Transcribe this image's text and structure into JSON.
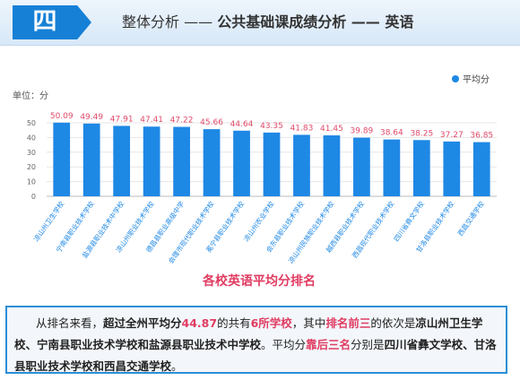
{
  "header": {
    "badge": "四",
    "title_prefix": "整体分析 —— ",
    "title_main": "公共基础课成绩分析 —— 英语"
  },
  "chart_data": {
    "type": "bar",
    "title": "各校英语平均分排名",
    "unit_label": "单位：分",
    "legend": "平均分",
    "legend_position": "top-right",
    "ylim": [
      0,
      50
    ],
    "yticks": [
      0,
      10,
      20,
      30,
      40,
      50
    ],
    "grid": true,
    "bar_color": "#1e88e5",
    "value_label_color": "#e04a6a",
    "title_color": "#e03c62",
    "series": [
      {
        "name": "平均分",
        "values": [
          50.09,
          49.49,
          47.91,
          47.41,
          47.22,
          45.66,
          44.64,
          43.35,
          41.83,
          41.45,
          39.89,
          38.64,
          38.25,
          37.27,
          36.85
        ]
      }
    ],
    "value_labels": [
      "50.09",
      "49.49",
      "47.91",
      "47.41",
      "47.22",
      "45.66",
      "44.64",
      "43.35",
      "41.83",
      "41.45",
      "39.89",
      "38.64",
      "38.25",
      "37.27",
      "36.85"
    ],
    "categories": [
      "凉山州卫生学校",
      "宁南县职业技术学校",
      "盐源县职业技术中学校",
      "凉山州职业技术学校",
      "德昌县职业高级中学",
      "会理市现代职业技术学校",
      "冕宁县职业技术学校",
      "凉山州农业学校",
      "会东县职业技术学校",
      "凉山州民族职业技术学校",
      "越西县职业技术学校",
      "西昌现代职业技术学校",
      "四川省彝文学校",
      "甘洛县职业技术学校",
      "西昌交通学校"
    ]
  },
  "summary": {
    "s1": "从排名来看，",
    "s2": "超过全州平均分",
    "s3": "44.87",
    "s4": "的共有",
    "s5": "6所学校",
    "s6": "，其中",
    "s7": "排名前三",
    "s8": "的依次是",
    "s9": "凉山州卫生学校、宁南县职业技术学校和盐源县职业技术中学校",
    "s10": "。平均分",
    "s11": "靠后三名",
    "s12": "分别是",
    "s13": "四川省彝文学校、甘洛县职业技术学校和西昌交通学校",
    "s14": "。"
  }
}
